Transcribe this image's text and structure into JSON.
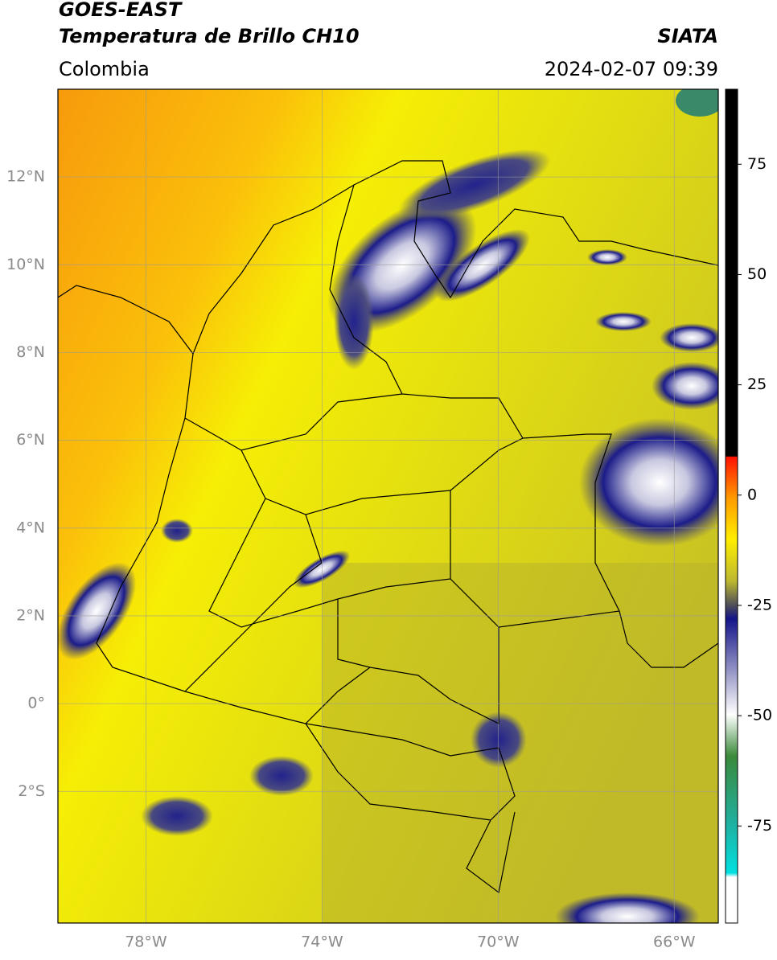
{
  "header": {
    "title": "GOES-EAST",
    "subtitle": "Temperatura de Brillo CH10",
    "source": "SIATA",
    "region": "Colombia",
    "datetime": "2024-02-07 09:39"
  },
  "map": {
    "xlim": [
      -80,
      -65
    ],
    "ylim": [
      -5,
      14
    ],
    "xticks": [
      {
        "value": -78,
        "label": "78°W"
      },
      {
        "value": -74,
        "label": "74°W"
      },
      {
        "value": -70,
        "label": "70°W"
      },
      {
        "value": -66,
        "label": "66°W"
      }
    ],
    "yticks": [
      {
        "value": 12,
        "label": "12°N"
      },
      {
        "value": 10,
        "label": "10°N"
      },
      {
        "value": 8,
        "label": "8°N"
      },
      {
        "value": 6,
        "label": "6°N"
      },
      {
        "value": 4,
        "label": "4°N"
      },
      {
        "value": 2,
        "label": "2°N"
      },
      {
        "value": 0,
        "label": "0°"
      },
      {
        "value": -2,
        "label": "2°S"
      }
    ],
    "grid": true
  },
  "colorbar": {
    "lim": [
      -97,
      92
    ],
    "ticks": [
      75,
      50,
      25,
      0,
      -25,
      -50,
      -75
    ]
  }
}
